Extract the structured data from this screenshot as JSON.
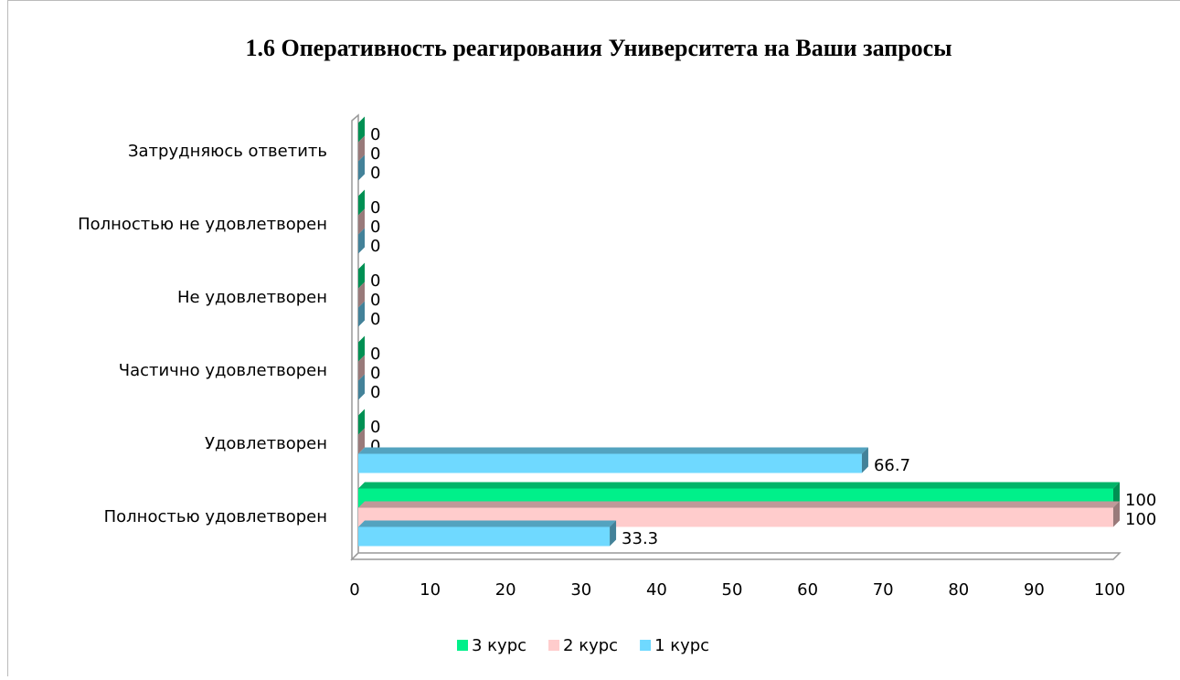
{
  "chart_data": {
    "type": "bar",
    "orientation": "horizontal",
    "three_d": true,
    "title": "1.6 Оперативность реагирования Университета на Ваши запросы",
    "categories": [
      "Затрудняюсь ответить",
      "Полностью не удовлетворен",
      "Не удовлетворен",
      "Частично удовлетворен",
      "Удовлетворен",
      "Полностью удовлетворен"
    ],
    "series": [
      {
        "name": "3 курс",
        "color": "#00f08a",
        "values": [
          0,
          0,
          0,
          0,
          0,
          100
        ]
      },
      {
        "name": "2 курс",
        "color": "#ffcccc",
        "values": [
          0,
          0,
          0,
          0,
          0,
          100
        ]
      },
      {
        "name": "1 курс",
        "color": "#6fd9ff",
        "values": [
          0,
          0,
          0,
          0,
          66.7,
          33.3
        ]
      }
    ],
    "xlim": [
      0,
      100
    ],
    "xticks": [
      0,
      10,
      20,
      30,
      40,
      50,
      60,
      70,
      80,
      90,
      100
    ],
    "legend": "bottom",
    "data_labels": true
  }
}
